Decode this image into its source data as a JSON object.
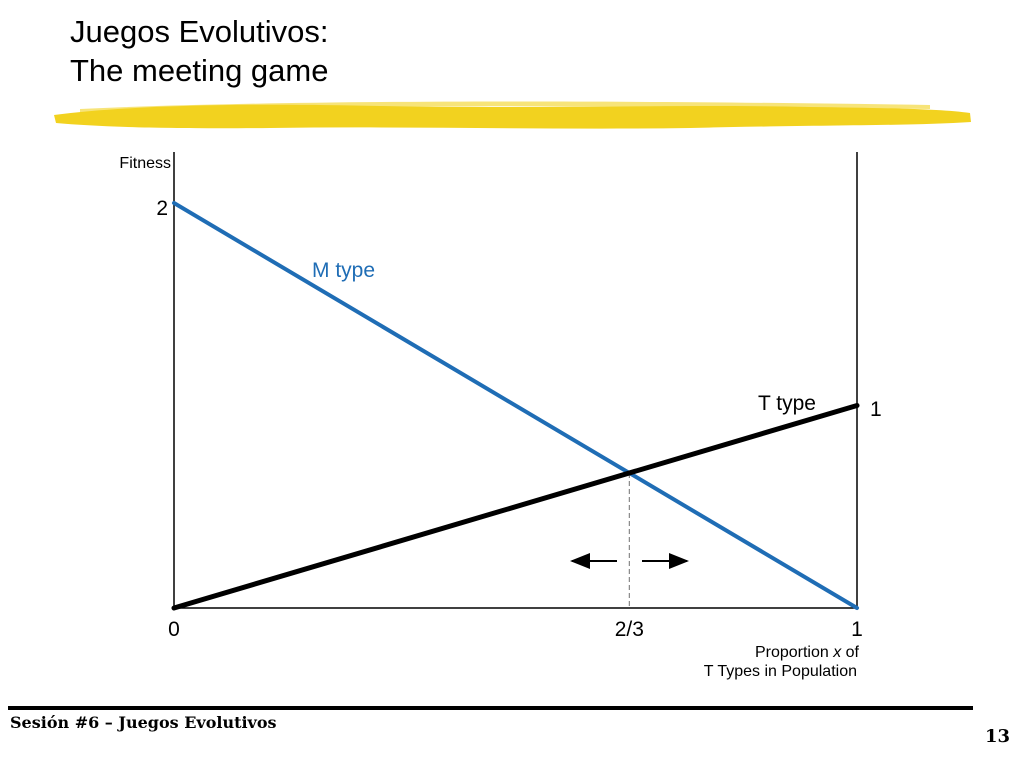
{
  "slide": {
    "title_line1": "Juegos Evolutivos:",
    "title_line2": "The meeting game",
    "footer": "Sesión #6 – Juegos Evolutivos",
    "page_number": "13",
    "highlight_color": "#f2d21f"
  },
  "chart_data": {
    "type": "line",
    "ylabel": "Fitness",
    "xlabel_line1": "Proportion x of",
    "xlabel_line2": "T Types in Population",
    "xlim": [
      0,
      1
    ],
    "ylim": [
      0,
      2
    ],
    "x_ticks": [
      {
        "value": 0,
        "label": "0"
      },
      {
        "value": 0.6667,
        "label": "2/3"
      },
      {
        "value": 1,
        "label": "1"
      }
    ],
    "series": [
      {
        "name": "M type",
        "color": "#1f6db5",
        "x": [
          0,
          1
        ],
        "y": [
          2,
          0
        ],
        "label_y": "2"
      },
      {
        "name": "T type",
        "color": "#000000",
        "x": [
          0,
          1
        ],
        "y": [
          0,
          1
        ],
        "label_y": "1"
      }
    ],
    "intersection": {
      "x": 0.6667,
      "y": 0.6667
    },
    "arrows": [
      "left",
      "right"
    ]
  }
}
